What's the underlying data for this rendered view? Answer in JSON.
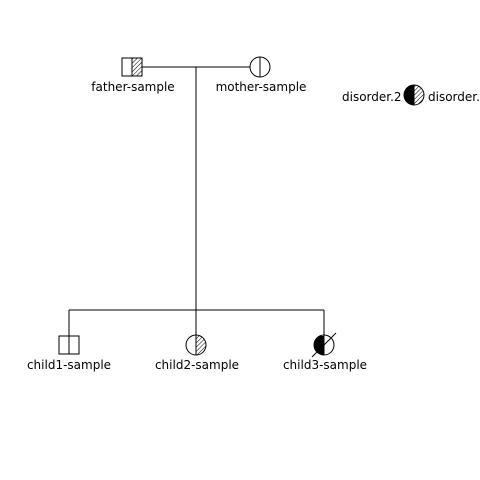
{
  "pedigree": {
    "father": {
      "label": "father-sample",
      "sex": "male"
    },
    "mother": {
      "label": "mother-sample",
      "sex": "female"
    },
    "children": [
      {
        "label": "child1-sample",
        "sex": "male",
        "deceased": false
      },
      {
        "label": "child2-sample",
        "sex": "female",
        "deceased": false
      },
      {
        "label": "child3-sample",
        "sex": "female",
        "deceased": true
      }
    ]
  },
  "legend": {
    "left_label": "disorder.2",
    "right_label": "disorder."
  },
  "colors": {
    "line": "#000000",
    "fill_solid": "#000000",
    "background": "#ffffff"
  }
}
